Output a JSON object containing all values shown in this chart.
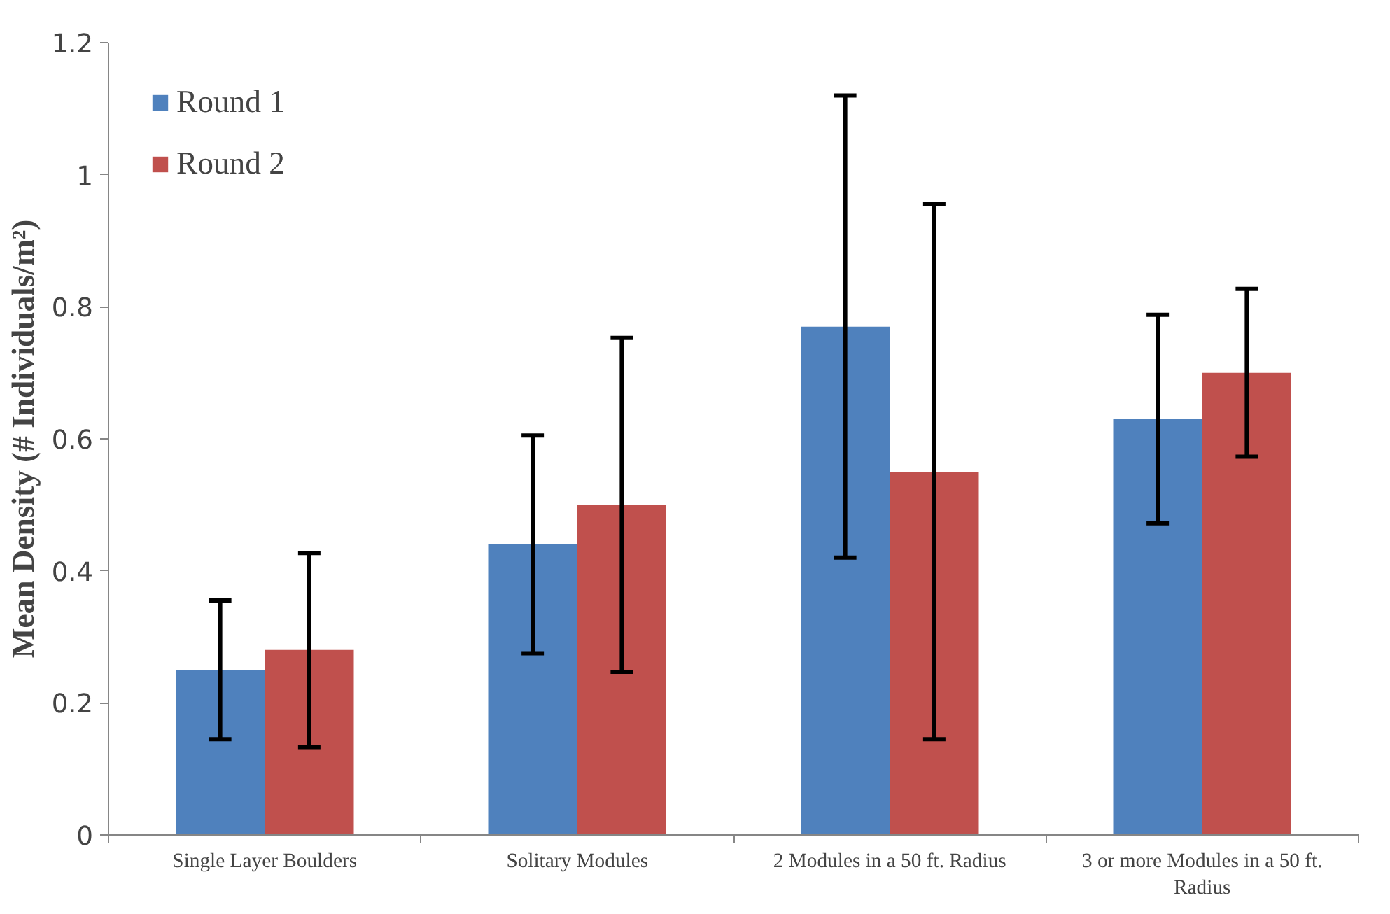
{
  "chart_data": {
    "type": "bar",
    "ylabel": "Mean Density (# Individuals/m²)",
    "categories": [
      "Single Layer Boulders",
      "Solitary Modules",
      "2 Modules in a 50 ft. Radius",
      "3 or more Modules in a 50 ft. Radius"
    ],
    "series": [
      {
        "name": "Round 1",
        "color": "#4f81bd",
        "values": [
          0.25,
          0.44,
          0.77,
          0.63
        ],
        "errors": [
          0.105,
          0.165,
          0.35,
          0.158
        ]
      },
      {
        "name": "Round 2",
        "color": "#c0504d",
        "values": [
          0.28,
          0.5,
          0.55,
          0.7
        ],
        "errors": [
          0.147,
          0.253,
          0.405,
          0.127
        ]
      }
    ],
    "ylim": [
      0,
      1.2
    ],
    "yticks": [
      0,
      0.2,
      0.4,
      0.6,
      0.8,
      1,
      1.2
    ],
    "grid": false,
    "legend": "top left"
  }
}
